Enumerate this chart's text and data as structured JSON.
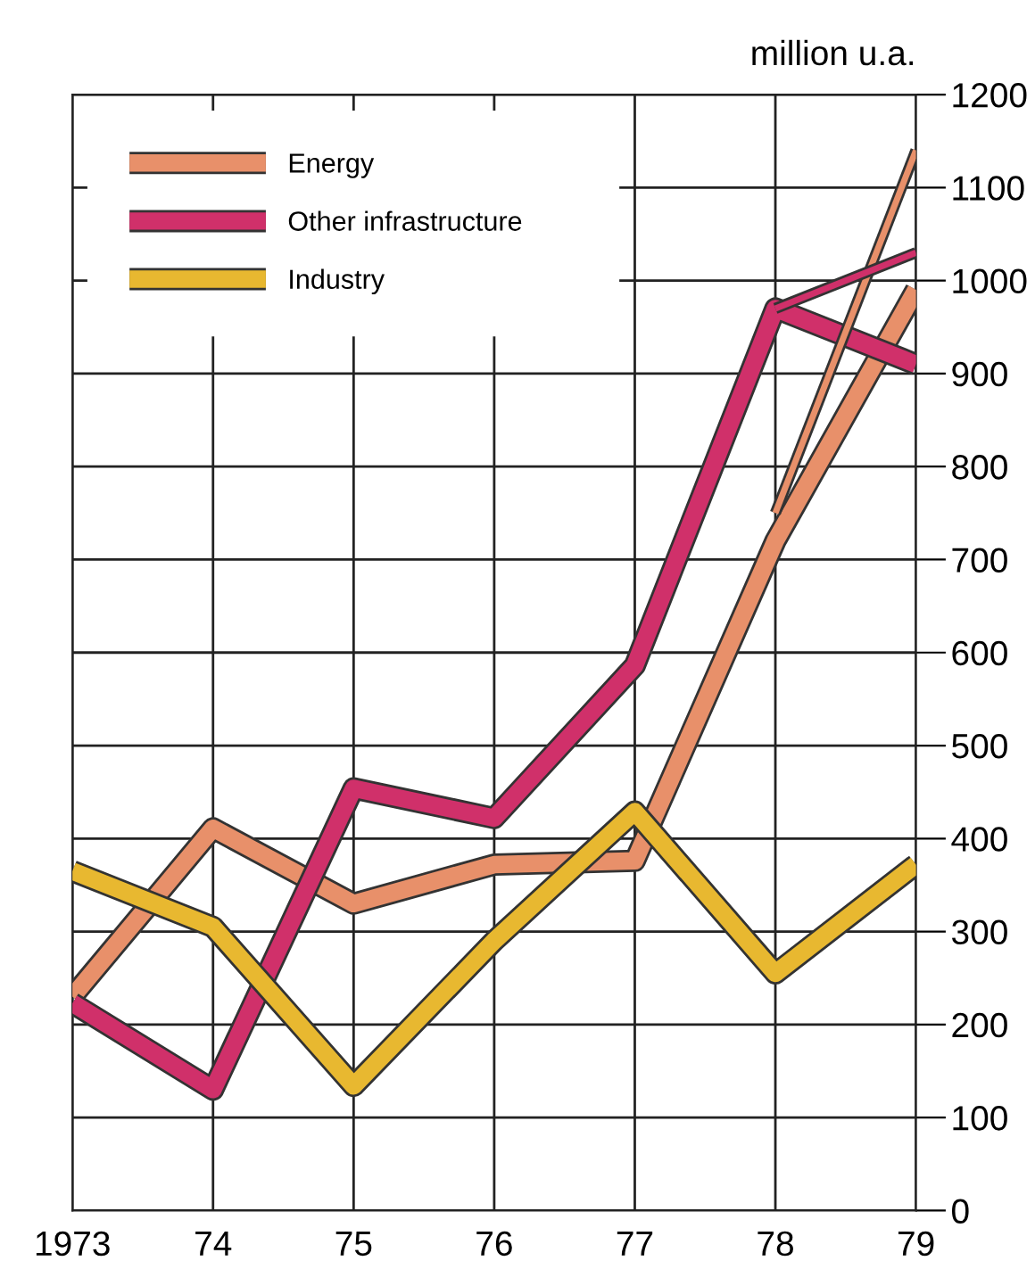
{
  "chart_data": {
    "type": "line",
    "ylabel": "million u.a.",
    "x": [
      1973,
      1974,
      1975,
      1976,
      1977,
      1978,
      1979
    ],
    "series": [
      {
        "name": "Energy",
        "color": "#e8906a",
        "values": [
          230,
          411,
          330,
          372,
          376,
          720,
          990
        ]
      },
      {
        "name": "Other infrastructure",
        "color": "#d0306a",
        "values": [
          223,
          130,
          454,
          422,
          586,
          970,
          910
        ]
      },
      {
        "name": "Industry",
        "color": "#e8b830",
        "values": [
          365,
          305,
          134,
          290,
          429,
          255,
          372
        ]
      },
      {
        "color": "#e8906a",
        "values": [
          null,
          null,
          null,
          null,
          null,
          750,
          1140
        ]
      },
      {
        "color": "#d0306a",
        "values": [
          null,
          null,
          null,
          null,
          null,
          970,
          1030
        ]
      }
    ],
    "xlim": [
      1973,
      1979
    ],
    "ylim": [
      0,
      1200
    ],
    "xticks": [
      1973,
      {
        "value": 1974,
        "label": "74"
      },
      {
        "value": 1975,
        "label": "75"
      },
      {
        "value": 1976,
        "label": "76"
      },
      {
        "value": 1977,
        "label": "77"
      },
      {
        "value": 1978,
        "label": "78"
      },
      {
        "value": 1979,
        "label": "79"
      }
    ],
    "yticks": [
      0,
      100,
      200,
      300,
      400,
      500,
      600,
      700,
      800,
      900,
      1000,
      1100,
      1200
    ],
    "grid": true,
    "legend": "top left",
    "marker": "none",
    "line_style": "solid"
  }
}
